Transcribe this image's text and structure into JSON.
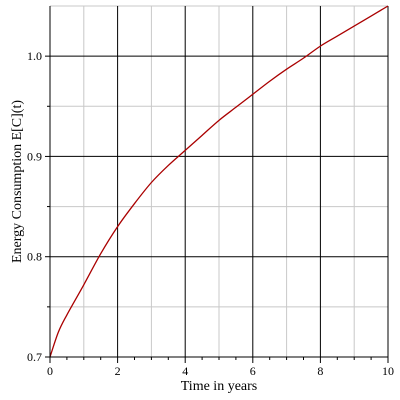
{
  "chart_data": {
    "type": "line",
    "title": "",
    "xlabel": "Time in years",
    "ylabel": "Energy Consumption E[C](t)",
    "xlim": [
      0,
      10
    ],
    "ylim": [
      0.7,
      1.05
    ],
    "x_major_ticks": [
      0,
      2,
      4,
      6,
      8,
      10
    ],
    "x_tick_labels": [
      "0",
      "2",
      "4",
      "6",
      "8",
      "10"
    ],
    "y_major_ticks": [
      0.7,
      0.8,
      0.9,
      1.0
    ],
    "y_tick_labels": [
      "0.7",
      "0.8",
      "0.9",
      "1.0"
    ],
    "grid": true,
    "legend": "none",
    "series": [
      {
        "color": "#aa0000",
        "x": [
          0,
          0.25,
          0.5,
          1,
          1.5,
          2,
          2.5,
          3,
          3.5,
          4,
          4.5,
          5,
          5.5,
          6,
          6.5,
          7,
          7.5,
          8,
          8.5,
          9,
          9.5,
          10
        ],
        "y": [
          0.7,
          0.725,
          0.742,
          0.772,
          0.803,
          0.83,
          0.853,
          0.874,
          0.891,
          0.906,
          0.921,
          0.936,
          0.949,
          0.962,
          0.975,
          0.987,
          0.998,
          1.01,
          1.02,
          1.03,
          1.04,
          1.05
        ]
      }
    ]
  }
}
